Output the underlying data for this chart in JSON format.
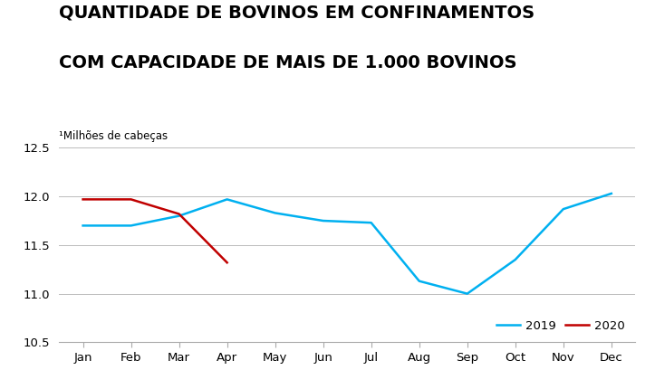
{
  "title_line1": "QUANTIDADE DE BOVINOS EM CONFINAMENTOS",
  "title_line2": "COM CAPACIDADE DE MAIS DE 1.000 BOVINOS",
  "ylabel_text": "¹Milhões de cabeças",
  "months": [
    "Jan",
    "Feb",
    "Mar",
    "Apr",
    "May",
    "Jun",
    "Jul",
    "Aug",
    "Sep",
    "Oct",
    "Nov",
    "Dec"
  ],
  "series_2019": {
    "label": "2019",
    "color": "#00B0F0",
    "values": [
      11.7,
      11.7,
      11.8,
      11.97,
      11.83,
      11.75,
      11.73,
      11.13,
      11.0,
      11.35,
      11.87,
      12.03
    ]
  },
  "series_2020": {
    "label": "2020",
    "color": "#C00000",
    "values": [
      11.97,
      11.97,
      11.82,
      11.32,
      null,
      null,
      null,
      null,
      null,
      null,
      null,
      null
    ]
  },
  "ylim": [
    10.5,
    12.5
  ],
  "yticks": [
    10.5,
    11.0,
    11.5,
    12.0,
    12.5
  ],
  "background_color": "#ffffff",
  "grid_color": "#bbbbbb",
  "title_fontsize": 14,
  "ylabel_fontsize": 8.5,
  "tick_fontsize": 9.5,
  "legend_fontsize": 9.5
}
